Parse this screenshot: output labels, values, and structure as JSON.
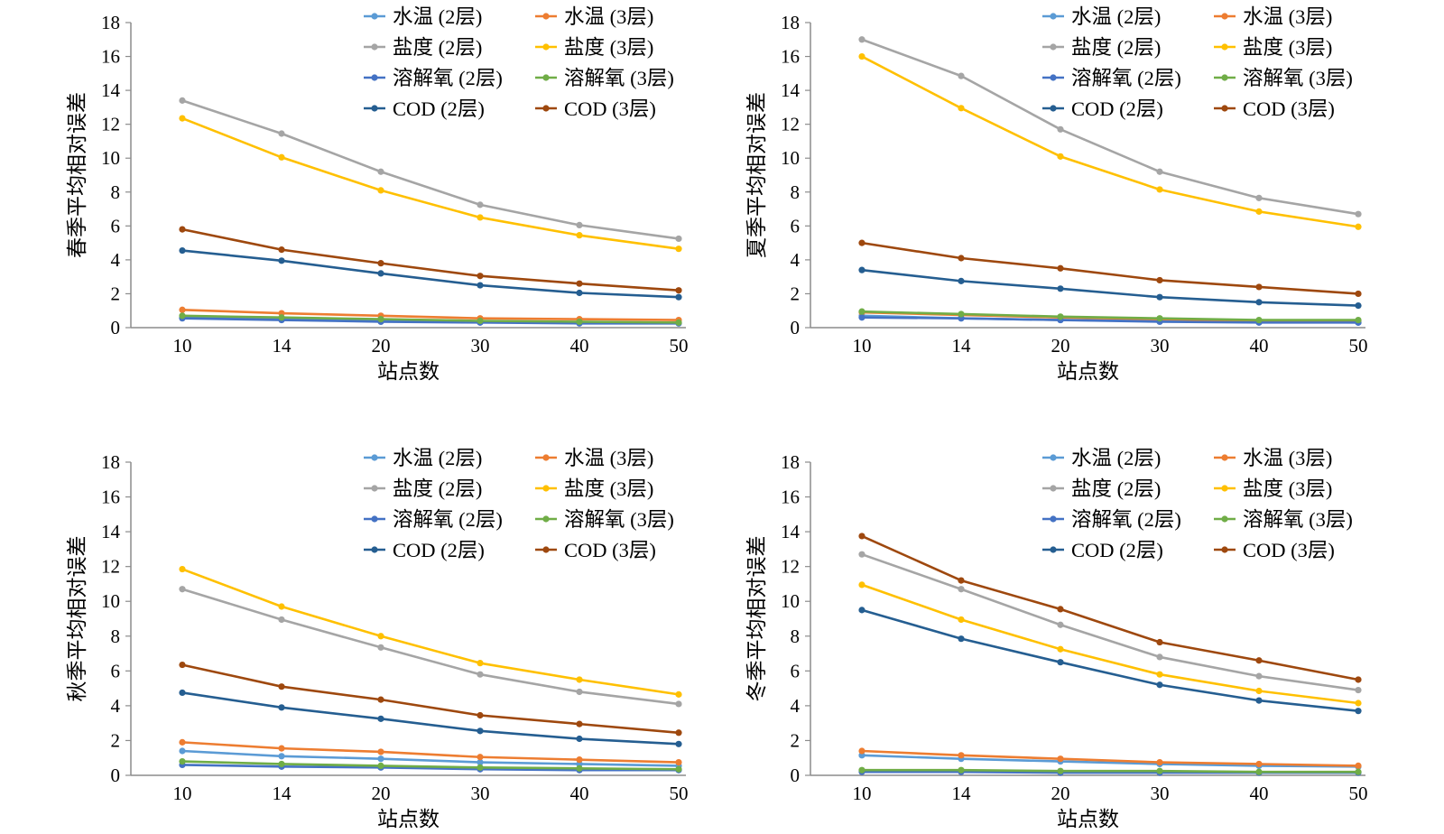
{
  "colors": {
    "wt2": "#5b9bd5",
    "wt3": "#ed7d31",
    "sal2": "#a5a5a5",
    "sal3": "#ffc000",
    "do2": "#4472c4",
    "do3": "#70ad47",
    "cod2": "#255e91",
    "cod3": "#9e480e"
  },
  "chart_data": [
    {
      "type": "line",
      "categories": [
        "10",
        "14",
        "20",
        "30",
        "40",
        "50"
      ],
      "xlabel": "站点数",
      "ylabel": "春季平均相对误差",
      "ylim": [
        0,
        18
      ],
      "yticks": [
        "0",
        "2",
        "4",
        "6",
        "8",
        "10",
        "12",
        "14",
        "16",
        "18"
      ],
      "legend_position": "top-right",
      "grid": false,
      "series": [
        {
          "name": "水温 (2层)",
          "color_key": "wt2",
          "values": [
            0.6,
            0.5,
            0.4,
            0.35,
            0.3,
            0.3
          ]
        },
        {
          "name": "水温 (3层)",
          "color_key": "wt3",
          "values": [
            1.05,
            0.85,
            0.7,
            0.55,
            0.5,
            0.45
          ]
        },
        {
          "name": "盐度 (2层)",
          "color_key": "sal2",
          "values": [
            13.4,
            11.45,
            9.2,
            7.25,
            6.05,
            5.25
          ]
        },
        {
          "name": "盐度 (3层)",
          "color_key": "sal3",
          "values": [
            12.35,
            10.05,
            8.1,
            6.5,
            5.45,
            4.65
          ]
        },
        {
          "name": "溶解氧 (2层)",
          "color_key": "do2",
          "values": [
            0.55,
            0.45,
            0.35,
            0.3,
            0.25,
            0.25
          ]
        },
        {
          "name": "溶解氧 (3层)",
          "color_key": "do3",
          "values": [
            0.7,
            0.6,
            0.5,
            0.4,
            0.35,
            0.3
          ]
        },
        {
          "name": "COD (2层)",
          "color_key": "cod2",
          "values": [
            4.55,
            3.95,
            3.2,
            2.5,
            2.05,
            1.8
          ]
        },
        {
          "name": "COD (3层)",
          "color_key": "cod3",
          "values": [
            5.8,
            4.6,
            3.8,
            3.05,
            2.6,
            2.2
          ]
        }
      ]
    },
    {
      "type": "line",
      "categories": [
        "10",
        "14",
        "20",
        "30",
        "40",
        "50"
      ],
      "xlabel": "站点数",
      "ylabel": "夏季平均相对误差",
      "ylim": [
        0,
        18
      ],
      "yticks": [
        "0",
        "2",
        "4",
        "6",
        "8",
        "10",
        "12",
        "14",
        "16",
        "18"
      ],
      "legend_position": "top-right",
      "grid": false,
      "series": [
        {
          "name": "水温 (2层)",
          "color_key": "wt2",
          "values": [
            0.7,
            0.55,
            0.45,
            0.4,
            0.35,
            0.3
          ]
        },
        {
          "name": "水温 (3层)",
          "color_key": "wt3",
          "values": [
            0.9,
            0.75,
            0.6,
            0.5,
            0.4,
            0.4
          ]
        },
        {
          "name": "盐度 (2层)",
          "color_key": "sal2",
          "values": [
            17.0,
            14.85,
            11.7,
            9.2,
            7.65,
            6.7
          ]
        },
        {
          "name": "盐度 (3层)",
          "color_key": "sal3",
          "values": [
            16.0,
            12.95,
            10.1,
            8.15,
            6.85,
            5.95
          ]
        },
        {
          "name": "溶解氧 (2层)",
          "color_key": "do2",
          "values": [
            0.6,
            0.55,
            0.45,
            0.35,
            0.3,
            0.3
          ]
        },
        {
          "name": "溶解氧 (3层)",
          "color_key": "do3",
          "values": [
            0.95,
            0.8,
            0.65,
            0.55,
            0.45,
            0.45
          ]
        },
        {
          "name": "COD (2层)",
          "color_key": "cod2",
          "values": [
            3.4,
            2.75,
            2.3,
            1.8,
            1.5,
            1.3
          ]
        },
        {
          "name": "COD (3层)",
          "color_key": "cod3",
          "values": [
            5.0,
            4.1,
            3.5,
            2.8,
            2.4,
            2.0
          ]
        }
      ]
    },
    {
      "type": "line",
      "categories": [
        "10",
        "14",
        "20",
        "30",
        "40",
        "50"
      ],
      "xlabel": "站点数",
      "ylabel": "秋季平均相对误差",
      "ylim": [
        0,
        18
      ],
      "yticks": [
        "0",
        "2",
        "4",
        "6",
        "8",
        "10",
        "12",
        "14",
        "16",
        "18"
      ],
      "legend_position": "top-right",
      "grid": false,
      "series": [
        {
          "name": "水温 (2层)",
          "color_key": "wt2",
          "values": [
            1.4,
            1.1,
            0.95,
            0.75,
            0.65,
            0.55
          ]
        },
        {
          "name": "水温 (3层)",
          "color_key": "wt3",
          "values": [
            1.9,
            1.55,
            1.35,
            1.05,
            0.9,
            0.75
          ]
        },
        {
          "name": "盐度 (2层)",
          "color_key": "sal2",
          "values": [
            10.7,
            8.95,
            7.35,
            5.8,
            4.8,
            4.1
          ]
        },
        {
          "name": "盐度 (3层)",
          "color_key": "sal3",
          "values": [
            11.85,
            9.7,
            8.0,
            6.45,
            5.5,
            4.65
          ]
        },
        {
          "name": "溶解氧 (2层)",
          "color_key": "do2",
          "values": [
            0.6,
            0.5,
            0.45,
            0.35,
            0.3,
            0.3
          ]
        },
        {
          "name": "溶解氧 (3层)",
          "color_key": "do3",
          "values": [
            0.8,
            0.65,
            0.55,
            0.45,
            0.4,
            0.35
          ]
        },
        {
          "name": "COD (2层)",
          "color_key": "cod2",
          "values": [
            4.75,
            3.9,
            3.25,
            2.55,
            2.1,
            1.8
          ]
        },
        {
          "name": "COD (3层)",
          "color_key": "cod3",
          "values": [
            6.35,
            5.1,
            4.35,
            3.45,
            2.95,
            2.45
          ]
        }
      ]
    },
    {
      "type": "line",
      "categories": [
        "10",
        "14",
        "20",
        "30",
        "40",
        "50"
      ],
      "xlabel": "站点数",
      "ylabel": "冬季平均相对误差",
      "ylim": [
        0,
        18
      ],
      "yticks": [
        "0",
        "2",
        "4",
        "6",
        "8",
        "10",
        "12",
        "14",
        "16",
        "18"
      ],
      "legend_position": "top-right",
      "grid": false,
      "series": [
        {
          "name": "水温 (2层)",
          "color_key": "wt2",
          "values": [
            1.15,
            0.95,
            0.8,
            0.65,
            0.55,
            0.5
          ]
        },
        {
          "name": "水温 (3层)",
          "color_key": "wt3",
          "values": [
            1.4,
            1.15,
            0.95,
            0.75,
            0.65,
            0.55
          ]
        },
        {
          "name": "盐度 (2层)",
          "color_key": "sal2",
          "values": [
            12.7,
            10.7,
            8.65,
            6.8,
            5.7,
            4.9
          ]
        },
        {
          "name": "盐度 (3层)",
          "color_key": "sal3",
          "values": [
            10.95,
            8.95,
            7.25,
            5.8,
            4.85,
            4.15
          ]
        },
        {
          "name": "溶解氧 (2层)",
          "color_key": "do2",
          "values": [
            0.2,
            0.2,
            0.15,
            0.15,
            0.15,
            0.15
          ]
        },
        {
          "name": "溶解氧 (3层)",
          "color_key": "do3",
          "values": [
            0.3,
            0.3,
            0.25,
            0.25,
            0.2,
            0.2
          ]
        },
        {
          "name": "COD (2层)",
          "color_key": "cod2",
          "values": [
            9.5,
            7.85,
            6.5,
            5.2,
            4.3,
            3.7
          ]
        },
        {
          "name": "COD (3层)",
          "color_key": "cod3",
          "values": [
            13.75,
            11.2,
            9.55,
            7.65,
            6.6,
            5.5
          ]
        }
      ]
    }
  ]
}
